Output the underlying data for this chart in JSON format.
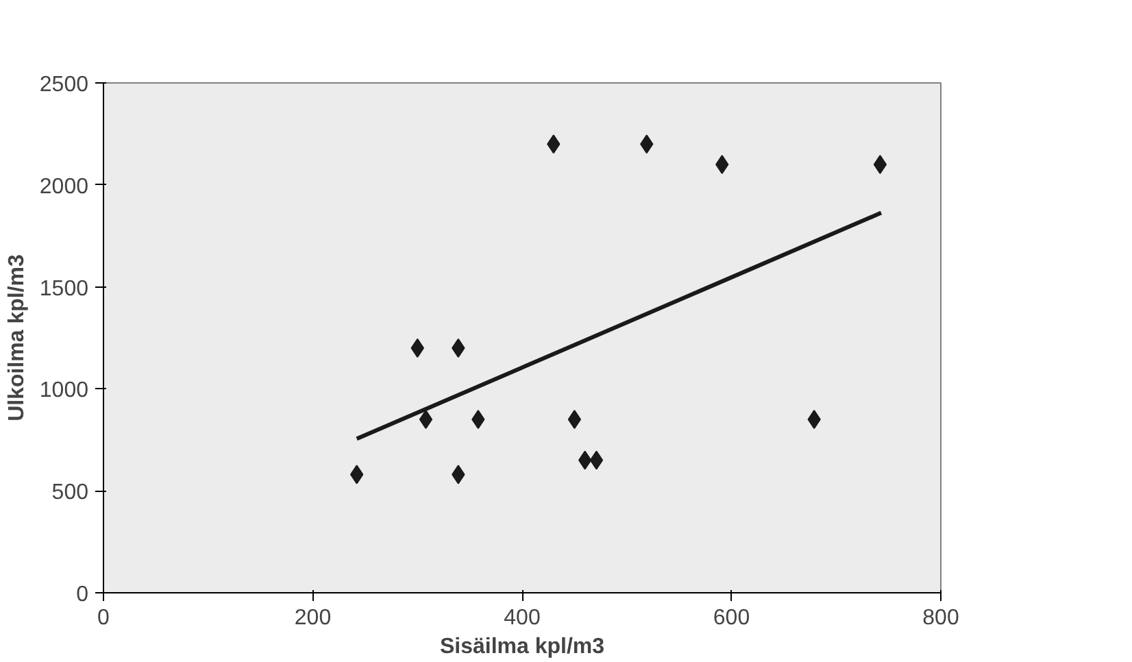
{
  "chart_data": {
    "type": "scatter",
    "xlabel": "Sisäilma kpl/m3",
    "ylabel": "Ulkoilma kpl/m3",
    "xlim": [
      0,
      800
    ],
    "xticks": [
      0,
      200,
      400,
      600,
      800
    ],
    "ylim": [
      0,
      2500
    ],
    "yticks": [
      0,
      500,
      1000,
      1500,
      2000,
      2500
    ],
    "grid": false,
    "marker": "diamond",
    "series": [
      {
        "color": "#1a1a1a",
        "x": [
          242,
          300,
          339,
          308,
          358,
          339,
          450,
          460,
          471,
          430,
          519,
          591,
          742,
          679
        ],
        "values": [
          580,
          1200,
          1200,
          850,
          850,
          580,
          850,
          650,
          650,
          2200,
          2200,
          2100,
          2100,
          850
        ]
      },
      {
        "type": "line",
        "color": "#1a1a1a",
        "x": [
          242,
          743
        ],
        "values": [
          755,
          1863
        ],
        "marker": "none",
        "line_style": "solid"
      }
    ]
  }
}
